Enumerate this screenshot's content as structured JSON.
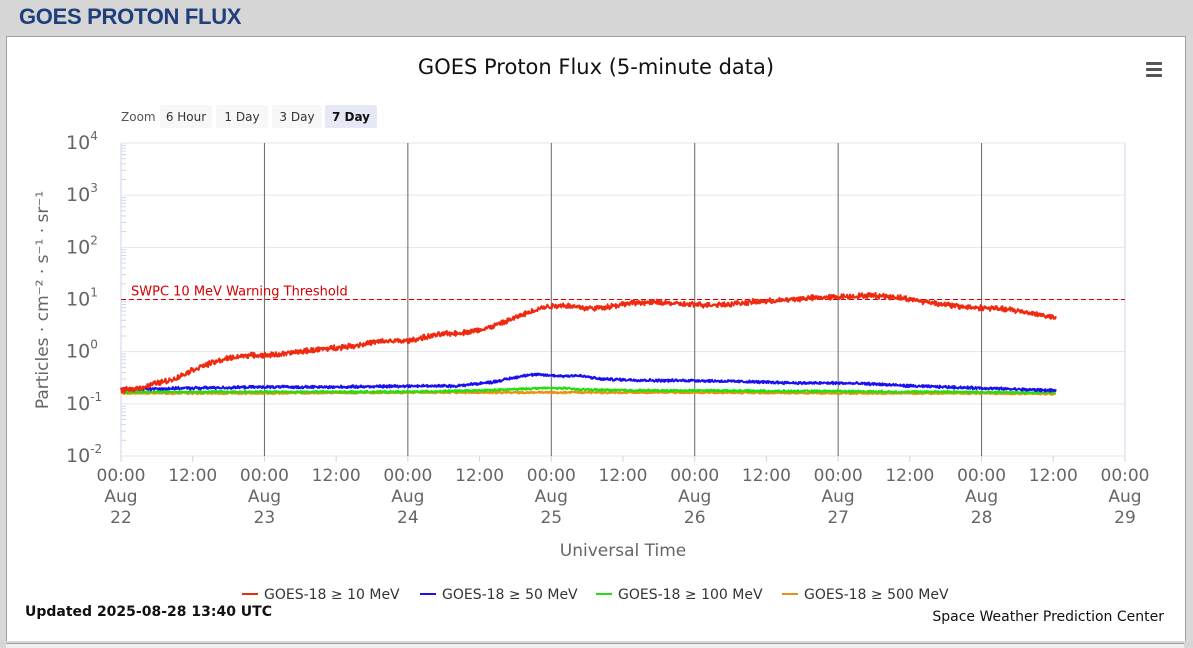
{
  "page": {
    "title": "GOES PROTON FLUX"
  },
  "chart": {
    "title": "GOES Proton Flux (5-minute data)",
    "zoom_label": "Zoom",
    "zoom_buttons": [
      "6 Hour",
      "1 Day",
      "3 Day",
      "7 Day"
    ],
    "zoom_selected": "7 Day",
    "ylabel": "Particles · cm⁻² · s⁻¹ · sr⁻¹",
    "xlabel": "Universal Time",
    "threshold_label": "SWPC 10 MeV Warning Threshold",
    "updated": "Updated 2025-08-28 13:40 UTC",
    "credit": "Space Weather Prediction Center",
    "menu_icon": "hamburger-menu-icon"
  },
  "chart_data": {
    "type": "line",
    "x_unit": "hours since Aug 22 00:00 UTC",
    "xlim": [
      0,
      168
    ],
    "ylim": [
      0.01,
      10000
    ],
    "yscale": "log",
    "y_ticks": [
      {
        "base": "10",
        "exp": "4"
      },
      {
        "base": "10",
        "exp": "3"
      },
      {
        "base": "10",
        "exp": "2"
      },
      {
        "base": "10",
        "exp": "1"
      },
      {
        "base": "10",
        "exp": "0"
      },
      {
        "base": "10",
        "exp": "-1"
      },
      {
        "base": "10",
        "exp": "-2"
      }
    ],
    "x_ticks": [
      {
        "time": "00:00",
        "month": "Aug",
        "day": "22"
      },
      {
        "time": "12:00",
        "month": "",
        "day": ""
      },
      {
        "time": "00:00",
        "month": "Aug",
        "day": "23"
      },
      {
        "time": "12:00",
        "month": "",
        "day": ""
      },
      {
        "time": "00:00",
        "month": "Aug",
        "day": "24"
      },
      {
        "time": "12:00",
        "month": "",
        "day": ""
      },
      {
        "time": "00:00",
        "month": "Aug",
        "day": "25"
      },
      {
        "time": "12:00",
        "month": "",
        "day": ""
      },
      {
        "time": "00:00",
        "month": "Aug",
        "day": "26"
      },
      {
        "time": "12:00",
        "month": "",
        "day": ""
      },
      {
        "time": "00:00",
        "month": "Aug",
        "day": "27"
      },
      {
        "time": "12:00",
        "month": "",
        "day": ""
      },
      {
        "time": "00:00",
        "month": "Aug",
        "day": "28"
      },
      {
        "time": "12:00",
        "month": "",
        "day": ""
      },
      {
        "time": "00:00",
        "month": "Aug",
        "day": "29"
      }
    ],
    "threshold": 10,
    "threshold_color": "#d40000",
    "day_lines_hours": [
      24,
      48,
      72,
      96,
      120,
      144
    ],
    "grid": true,
    "legend_position": "bottom",
    "series": [
      {
        "name": "GOES-18 ≥ 10 MeV",
        "color": "#f02a10",
        "x": [
          0,
          3,
          6,
          9,
          12,
          15,
          18,
          21,
          24,
          27,
          30,
          33,
          36,
          39,
          42,
          45,
          48,
          51,
          54,
          57,
          60,
          62,
          64,
          66,
          68,
          70,
          72,
          74,
          76,
          78,
          80,
          83,
          86,
          90,
          94,
          98,
          102,
          106,
          110,
          114,
          118,
          122,
          126,
          130,
          134,
          137,
          140,
          143,
          146,
          149,
          152,
          155,
          156.5
        ],
        "y": [
          0.18,
          0.2,
          0.25,
          0.3,
          0.45,
          0.6,
          0.75,
          0.85,
          0.85,
          0.9,
          1.0,
          1.1,
          1.2,
          1.3,
          1.5,
          1.6,
          1.6,
          1.9,
          2.2,
          2.3,
          2.6,
          3.0,
          3.6,
          4.5,
          5.5,
          6.8,
          7.5,
          7.8,
          7.3,
          6.8,
          6.9,
          7.8,
          8.7,
          8.8,
          8.1,
          7.9,
          8.2,
          9.0,
          9.5,
          10.5,
          11.0,
          11.5,
          12.0,
          11.0,
          9.3,
          8.3,
          7.4,
          7.0,
          6.8,
          6.3,
          5.6,
          4.8,
          4.4
        ],
        "noise": 0.04
      },
      {
        "name": "GOES-18 ≥ 50 MeV",
        "color": "#1c10f0",
        "x": [
          0,
          12,
          24,
          36,
          48,
          56,
          62,
          66,
          68,
          70,
          72,
          74,
          76,
          78,
          80,
          84,
          90,
          96,
          102,
          108,
          114,
          120,
          126,
          132,
          138,
          144,
          150,
          156.5
        ],
        "y": [
          0.19,
          0.2,
          0.21,
          0.21,
          0.22,
          0.22,
          0.26,
          0.32,
          0.36,
          0.36,
          0.35,
          0.34,
          0.35,
          0.33,
          0.3,
          0.29,
          0.28,
          0.28,
          0.27,
          0.26,
          0.25,
          0.25,
          0.24,
          0.22,
          0.21,
          0.2,
          0.19,
          0.18
        ],
        "noise": 0.02
      },
      {
        "name": "GOES-18 ≥ 100 MeV",
        "color": "#22e010",
        "x": [
          0,
          24,
          48,
          60,
          66,
          70,
          72,
          74,
          76,
          80,
          90,
          100,
          110,
          120,
          130,
          140,
          150,
          156.5
        ],
        "y": [
          0.17,
          0.17,
          0.17,
          0.18,
          0.19,
          0.2,
          0.2,
          0.2,
          0.19,
          0.185,
          0.18,
          0.18,
          0.175,
          0.175,
          0.17,
          0.17,
          0.165,
          0.165
        ],
        "noise": 0.015
      },
      {
        "name": "GOES-18 ≥ 500 MeV",
        "color": "#e89010",
        "x": [
          0,
          24,
          48,
          72,
          96,
          120,
          144,
          156.5
        ],
        "y": [
          0.16,
          0.16,
          0.165,
          0.165,
          0.165,
          0.16,
          0.16,
          0.155
        ],
        "noise": 0.015
      }
    ]
  }
}
